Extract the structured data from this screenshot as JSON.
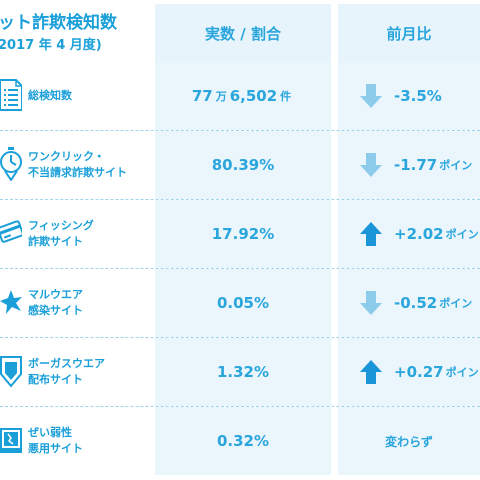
{
  "header": {
    "title_line1": "ット詐欺検知数",
    "title_line2": "2017 年 4 月度)",
    "col_value": "実数 / 割合",
    "col_change": "前月比"
  },
  "rows": [
    {
      "label1": "総検知数",
      "label2": "",
      "value_a": "77",
      "value_unit1": "万",
      "value_b": "6,502",
      "value_unit2": "件",
      "change": "-3.5%",
      "change_unit": "",
      "direction": "down"
    },
    {
      "label1": "ワンクリック・",
      "label2": "不当請求詐欺サイト",
      "value": "80.39%",
      "change": "-1.77",
      "change_unit": "ポイン",
      "direction": "down"
    },
    {
      "label1": "フィッシング",
      "label2": "詐欺サイト",
      "value": "17.92%",
      "change": "+2.02",
      "change_unit": "ポイン",
      "direction": "up"
    },
    {
      "label1": "マルウエア",
      "label2": "感染サイト",
      "value": "0.05%",
      "change": "-0.52",
      "change_unit": "ポイン",
      "direction": "down"
    },
    {
      "label1": "ボーガスウエア",
      "label2": "配布サイト",
      "value": "1.32%",
      "change": "+0.27",
      "change_unit": "ポイン",
      "direction": "up"
    },
    {
      "label1": "ぜい弱性",
      "label2": "悪用サイト",
      "value": "0.32%",
      "change_text": "変わらず"
    }
  ],
  "colors": {
    "accent": "#1a9fd9",
    "value_text": "#2aa6dd",
    "cell_bg": "#eaf5fc",
    "arrow_up": "#1a95d8",
    "arrow_down": "#8dcbeb"
  },
  "icons": [
    "document-list-icon",
    "timer-click-icon",
    "credit-card-hook-icon",
    "star-burst-icon",
    "shield-badge-icon",
    "broken-window-icon"
  ]
}
